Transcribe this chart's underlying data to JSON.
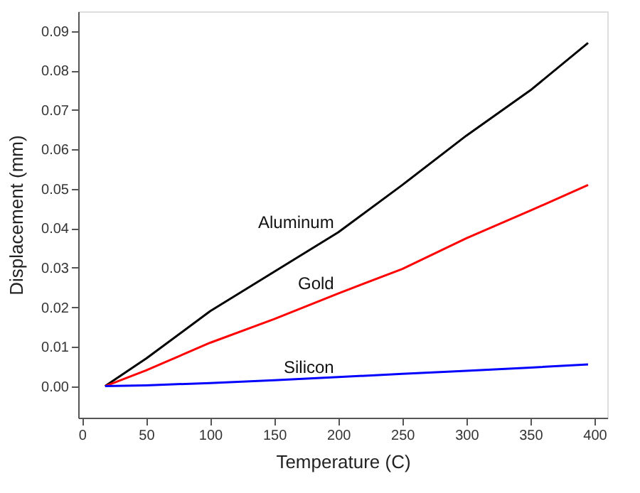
{
  "chart_data": {
    "type": "line",
    "xlabel": "Temperature (C)",
    "ylabel": "Displacement (mm)",
    "x": [
      18,
      50,
      100,
      150,
      200,
      250,
      300,
      350,
      395
    ],
    "series": [
      {
        "name": "Aluminum",
        "color": "#000000",
        "values": [
          0,
          0.007,
          0.019,
          0.029,
          0.039,
          0.051,
          0.0635,
          0.075,
          0.087
        ]
      },
      {
        "name": "Gold",
        "color": "#ff0000",
        "values": [
          0,
          0.004,
          0.011,
          0.017,
          0.0235,
          0.0297,
          0.0375,
          0.0445,
          0.051
        ]
      },
      {
        "name": "Silicon",
        "color": "#0000ff",
        "values": [
          0,
          0.0002,
          0.0008,
          0.0015,
          0.0023,
          0.0031,
          0.0039,
          0.0047,
          0.0055
        ]
      }
    ],
    "xlim": [
      -3,
      410
    ],
    "xticks": [
      0,
      50,
      100,
      150,
      200,
      250,
      300,
      350,
      400
    ],
    "ylim": [
      -0.008,
      0.095
    ],
    "yticks": [
      {
        "value": 0,
        "label": "0.00"
      },
      {
        "value": 0.01,
        "label": "0.01"
      },
      {
        "value": 0.02,
        "label": "0.02"
      },
      {
        "value": 0.03,
        "label": "0.03"
      },
      {
        "value": 0.04,
        "label": "0.04"
      },
      {
        "value": 0.05,
        "label": "0.05"
      },
      {
        "value": 0.06,
        "label": "0.06"
      },
      {
        "value": 0.07,
        "label": "0.07"
      },
      {
        "value": 0.08,
        "label": "0.08"
      },
      {
        "value": 0.09,
        "label": "0.09"
      }
    ],
    "grid": false,
    "legend": false,
    "marker": "none",
    "line_style": "solid"
  }
}
